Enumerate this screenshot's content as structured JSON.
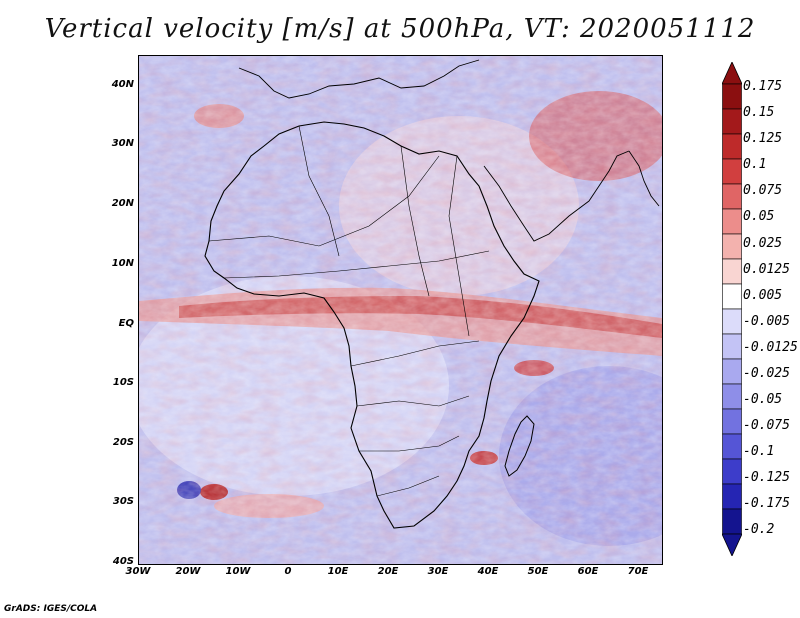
{
  "title": "Vertical velocity [m/s] at 500hPa, VT: 2020051112",
  "footer": "GrADS: IGES/COLA",
  "map": {
    "lat_labels": [
      "40N",
      "30N",
      "20N",
      "10N",
      "EQ",
      "10S",
      "20S",
      "30S",
      "40S"
    ],
    "lon_labels": [
      "30W",
      "20W",
      "10W",
      "0",
      "10E",
      "20E",
      "30E",
      "40E",
      "50E",
      "60E",
      "70E"
    ],
    "lat_range": [
      -40,
      45
    ],
    "lon_range": [
      -30,
      75
    ]
  },
  "colorbar": {
    "labels": [
      "0.175",
      "0.15",
      "0.125",
      "0.1",
      "0.075",
      "0.05",
      "0.025",
      "0.0125",
      "0.005",
      "-0.005",
      "-0.0125",
      "-0.025",
      "-0.05",
      "-0.075",
      "-0.1",
      "-0.125",
      "-0.175",
      "-0.2"
    ],
    "colors": [
      "#8b0f10",
      "#a3191b",
      "#be2a2a",
      "#d13f3f",
      "#e06565",
      "#ec8d8b",
      "#f3b2ae",
      "#f9d5d2",
      "#ffffff",
      "#dcdcfa",
      "#c3c3f5",
      "#a9a9ef",
      "#8e8ee8",
      "#7272e0",
      "#5555d6",
      "#3d3dca",
      "#2525b3",
      "#14148f"
    ]
  }
}
